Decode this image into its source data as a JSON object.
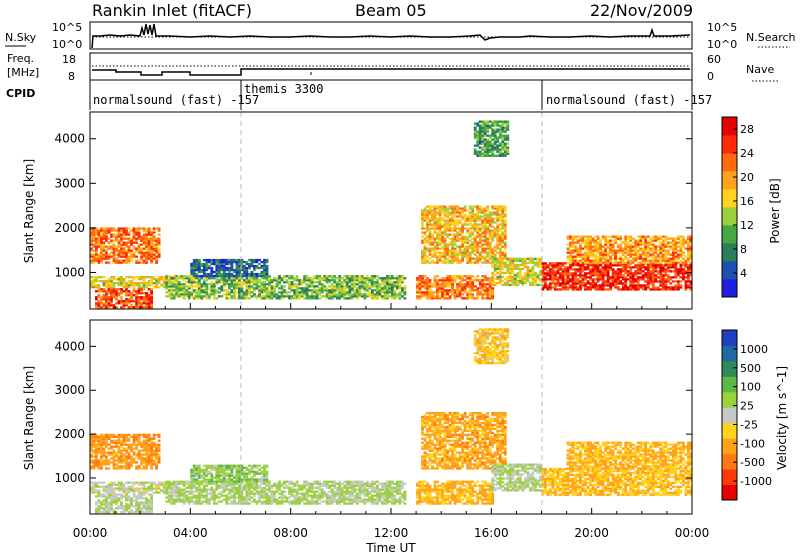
{
  "header": {
    "station": "Rankin Inlet (fitACF)",
    "beam": "Beam 05",
    "date": "22/Nov/2009"
  },
  "noise_panel": {
    "left_label": "N.Sky",
    "right_label": "N.Search",
    "left_ticks": [
      "10^5",
      "10^0"
    ],
    "right_ticks": [
      "10^5",
      "10^0"
    ]
  },
  "freq_panel": {
    "left_label_line1": "Freq.",
    "left_label_line2": "[MHz]",
    "right_label": "Nave",
    "left_ticks": [
      "18",
      "8"
    ],
    "right_ticks": [
      "60",
      "0"
    ]
  },
  "cpid_panel": {
    "label": "CPID",
    "segments": [
      {
        "text": "normalsound (fast) -157",
        "start_hour": 0.0
      },
      {
        "text": "themis 3300",
        "start_hour": 6.0
      },
      {
        "text": "normalsound (fast) -157",
        "start_hour": 18.0
      }
    ]
  },
  "time_axis": {
    "label": "Time UT",
    "ticks": [
      "00:00",
      "04:00",
      "08:00",
      "12:00",
      "16:00",
      "20:00",
      "00:00"
    ]
  },
  "power_panel": {
    "ylabel": "Slant Range [km]",
    "yticks": [
      "1000",
      "2000",
      "3000",
      "4000"
    ],
    "colorbar_label": "Power [dB]",
    "colorbar_ticks": [
      "4",
      "8",
      "12",
      "16",
      "20",
      "24",
      "28"
    ],
    "colors": [
      "#1f1fe0",
      "#1e50b0",
      "#2e7d5a",
      "#44a844",
      "#9ad23c",
      "#ffd21e",
      "#ffa21e",
      "#ff6a12",
      "#ff2a0a",
      "#e60000"
    ]
  },
  "velocity_panel": {
    "ylabel": "Slant Range [km]",
    "yticks": [
      "1000",
      "2000",
      "3000",
      "4000"
    ],
    "colorbar_label": "Velocity [m s^-1]",
    "colorbar_ticks": [
      "1000",
      "500",
      "100",
      "25",
      "-25",
      "-100",
      "-500",
      "-1000"
    ],
    "colors": [
      "#1f3fc0",
      "#1e6aa0",
      "#2e8a5a",
      "#5cb848",
      "#9ad23c",
      "#c8c8c8",
      "#ffd21e",
      "#ffa21e",
      "#ff7a12",
      "#ff3a0a",
      "#e60000"
    ]
  },
  "chart_data": {
    "type": "heatmap",
    "x_range_hours": [
      0,
      24
    ],
    "y_range_km": [
      180,
      4600
    ],
    "grid": "dashed vertical lines at 06:00 and 18:00",
    "power_db_range": [
      0,
      30
    ],
    "velocity_range": [
      -1000,
      1000
    ],
    "regions": [
      {
        "t0": 0.0,
        "t1": 2.8,
        "r0": 1200,
        "r1": 2000,
        "power": 22,
        "velocity": -400
      },
      {
        "t0": 0.2,
        "t1": 2.5,
        "r0": 200,
        "r1": 650,
        "power": 24,
        "velocity": 60
      },
      {
        "t0": 0.0,
        "t1": 3.5,
        "r0": 650,
        "r1": 900,
        "power": 16,
        "velocity": 30
      },
      {
        "t0": 3.0,
        "t1": 12.5,
        "r0": 400,
        "r1": 900,
        "power": 12,
        "velocity": 120
      },
      {
        "t0": 4.0,
        "t1": 7.0,
        "r0": 900,
        "r1": 1300,
        "power": 6,
        "velocity": 200
      },
      {
        "t0": 13.0,
        "t1": 16.0,
        "r0": 400,
        "r1": 900,
        "power": 22,
        "velocity": -300
      },
      {
        "t0": 13.2,
        "t1": 16.5,
        "r0": 1200,
        "r1": 2500,
        "power": 18,
        "velocity": -350
      },
      {
        "t0": 16.0,
        "t1": 18.0,
        "r0": 700,
        "r1": 1300,
        "power": 16,
        "velocity": 100
      },
      {
        "t0": 18.0,
        "t1": 24.0,
        "r0": 600,
        "r1": 1200,
        "power": 26,
        "velocity": -250
      },
      {
        "t0": 19.0,
        "t1": 24.0,
        "r0": 1200,
        "r1": 1800,
        "power": 20,
        "velocity": -300
      },
      {
        "t0": 15.3,
        "t1": 16.7,
        "r0": 3600,
        "r1": 4400,
        "power": 10,
        "velocity": -200
      }
    ]
  }
}
